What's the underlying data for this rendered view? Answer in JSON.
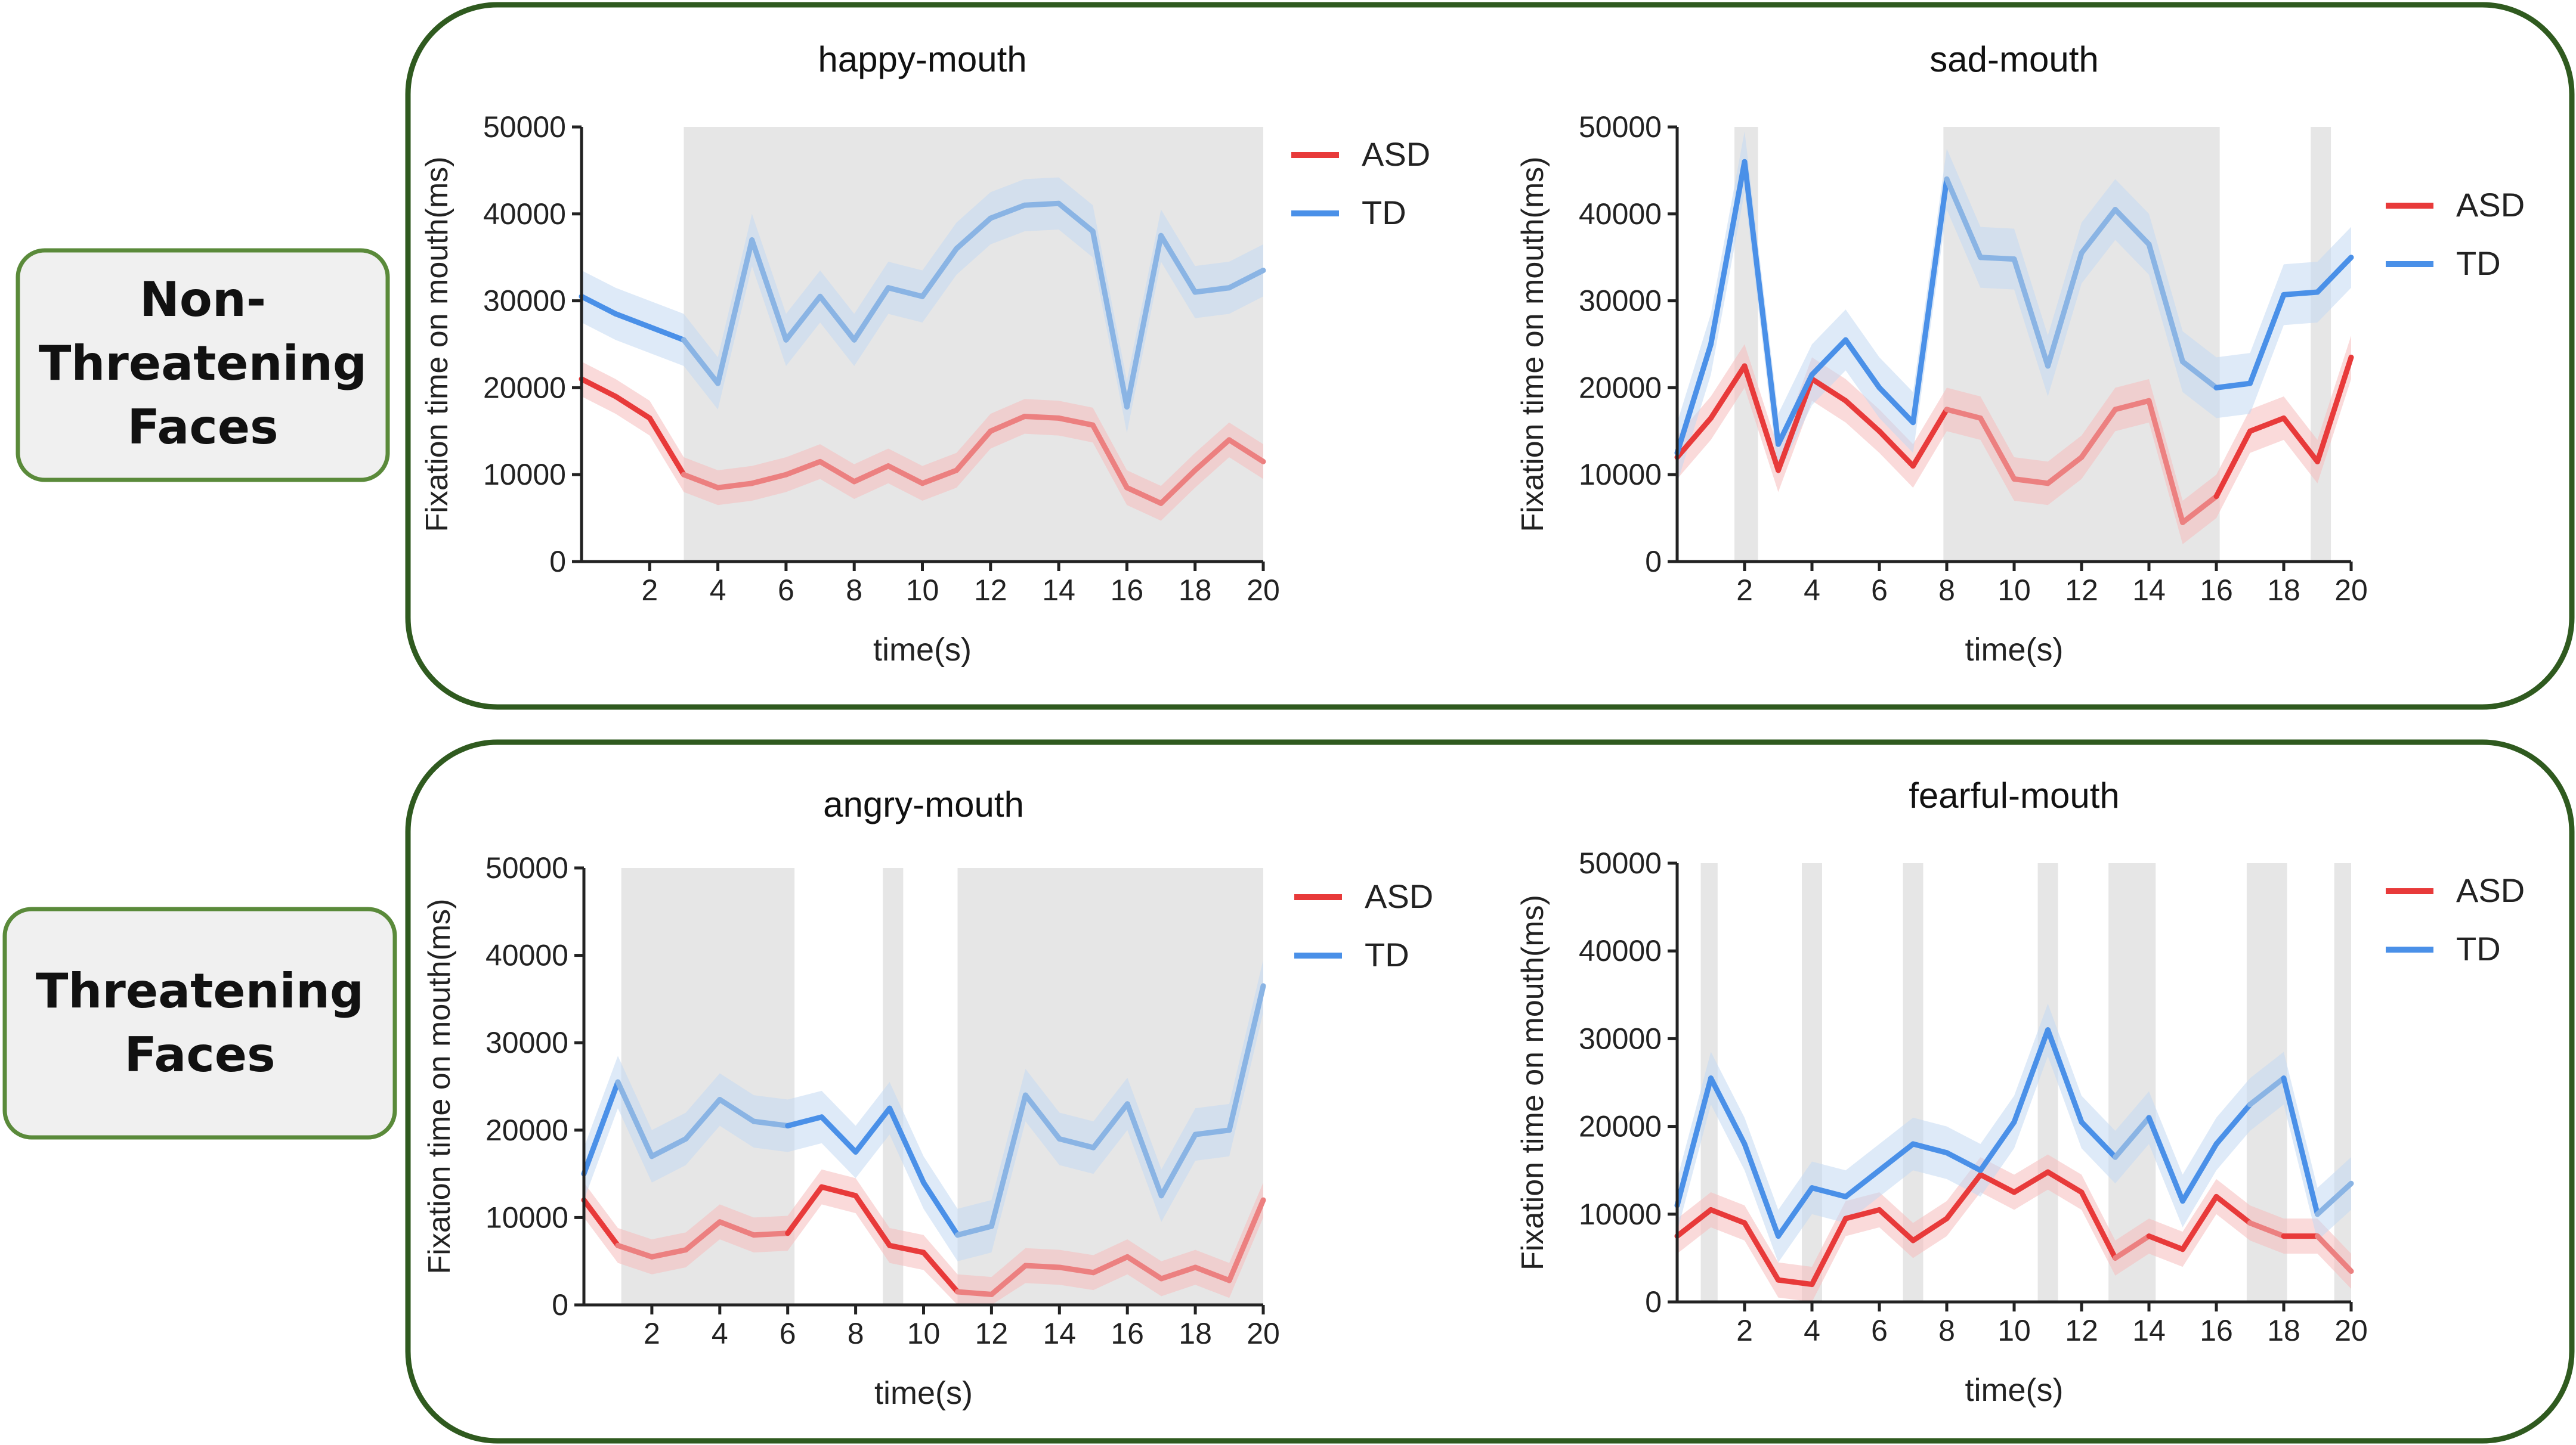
{
  "colors": {
    "panel_border": "#2f5a1f",
    "label_border": "#5a8a3a",
    "label_bg": "#f0f0f0",
    "asd": "#e83a3a",
    "asd_faded": "#ec8080",
    "asd_band": "#f6bcbc",
    "td": "#4a90e8",
    "td_faded": "#8ab4e4",
    "td_band": "#c3d9f2",
    "shade": "#e6e6e6",
    "axis": "#222222"
  },
  "groups": [
    {
      "label_lines": [
        "Non-",
        "Threatening",
        "Faces"
      ]
    },
    {
      "label_lines": [
        "Threatening",
        "Faces"
      ]
    }
  ],
  "chart_data": [
    {
      "type": "line",
      "title": "happy-mouth",
      "xlabel": "time(s)",
      "ylabel": "Fixation time on mouth(ms)",
      "xlim": [
        0,
        20
      ],
      "ylim": [
        0,
        50000
      ],
      "xticks": [
        2,
        4,
        6,
        8,
        10,
        12,
        14,
        16,
        18,
        20
      ],
      "yticks": [
        0,
        10000,
        20000,
        30000,
        40000,
        50000
      ],
      "ytick_labels": [
        "0",
        "10000",
        "20000",
        "30000",
        "40000",
        "50000"
      ],
      "legend": [
        "ASD",
        "TD"
      ],
      "legend_position": "top-right",
      "shaded_regions": [
        [
          3,
          20
        ]
      ],
      "x": [
        0,
        1,
        2,
        3,
        4,
        5,
        6,
        7,
        8,
        9,
        10,
        11,
        12,
        13,
        14,
        15,
        16,
        17,
        18,
        19,
        20
      ],
      "series": [
        {
          "name": "ASD",
          "values": [
            21000,
            19000,
            16500,
            10000,
            8500,
            9000,
            10000,
            11500,
            9200,
            11000,
            9000,
            10500,
            15000,
            16700,
            16500,
            15700,
            8500,
            6700,
            10500,
            14000,
            11500
          ],
          "band": 2000
        },
        {
          "name": "TD",
          "values": [
            30500,
            28500,
            27000,
            25500,
            20500,
            37000,
            25500,
            30500,
            25500,
            31500,
            30500,
            36000,
            39500,
            41000,
            41200,
            38000,
            17800,
            37500,
            31000,
            31500,
            33500
          ],
          "band": 3000
        }
      ]
    },
    {
      "type": "line",
      "title": "sad-mouth",
      "xlabel": "time(s)",
      "ylabel": "Fixation time on mouth(ms)",
      "xlim": [
        0,
        20
      ],
      "ylim": [
        0,
        50000
      ],
      "xticks": [
        2,
        4,
        6,
        8,
        10,
        12,
        14,
        16,
        18,
        20
      ],
      "yticks": [
        0,
        10000,
        20000,
        30000,
        40000,
        50000
      ],
      "ytick_labels": [
        "0",
        "10000",
        "20000",
        "30000",
        "40000",
        "50000"
      ],
      "legend": [
        "ASD",
        "TD"
      ],
      "legend_position": "top-right",
      "shaded_regions": [
        [
          1.7,
          2.4
        ],
        [
          7.9,
          16.1
        ],
        [
          18.8,
          19.4
        ]
      ],
      "x": [
        0,
        1,
        2,
        3,
        4,
        5,
        6,
        7,
        8,
        9,
        10,
        11,
        12,
        13,
        14,
        15,
        16,
        17,
        18,
        19,
        20
      ],
      "series": [
        {
          "name": "ASD",
          "values": [
            12000,
            16500,
            22500,
            10500,
            21000,
            18500,
            15000,
            11000,
            17500,
            16500,
            9500,
            9000,
            12000,
            17500,
            18500,
            4500,
            7500,
            15000,
            16500,
            11500,
            23500
          ],
          "band": 2500
        },
        {
          "name": "TD",
          "values": [
            12500,
            25000,
            46000,
            13500,
            21500,
            25500,
            20000,
            16000,
            44000,
            35000,
            34800,
            22500,
            35500,
            40500,
            36500,
            23000,
            20000,
            20500,
            30700,
            31000,
            35000
          ],
          "band": 3500
        }
      ]
    },
    {
      "type": "line",
      "title": "angry-mouth",
      "xlabel": "time(s)",
      "ylabel": "Fixation time on mouth(ms)",
      "xlim": [
        0,
        20
      ],
      "ylim": [
        0,
        50000
      ],
      "xticks": [
        2,
        4,
        6,
        8,
        10,
        12,
        14,
        16,
        18,
        20
      ],
      "yticks": [
        0,
        10000,
        20000,
        30000,
        40000,
        50000
      ],
      "ytick_labels": [
        "0",
        "10000",
        "20000",
        "30000",
        "40000",
        "50000"
      ],
      "legend": [
        "ASD",
        "TD"
      ],
      "legend_position": "top-right",
      "shaded_regions": [
        [
          1.1,
          6.2
        ],
        [
          8.8,
          9.4
        ],
        [
          11.0,
          20
        ]
      ],
      "x": [
        0,
        1,
        2,
        3,
        4,
        5,
        6,
        7,
        8,
        9,
        10,
        11,
        12,
        13,
        14,
        15,
        16,
        17,
        18,
        19,
        20
      ],
      "series": [
        {
          "name": "ASD",
          "values": [
            12000,
            6800,
            5500,
            6300,
            9500,
            8000,
            8200,
            13500,
            12500,
            6800,
            6000,
            1500,
            1200,
            4500,
            4300,
            3700,
            5500,
            3000,
            4300,
            2800,
            12000
          ],
          "band": 2000
        },
        {
          "name": "TD",
          "values": [
            15000,
            25500,
            17000,
            19000,
            23500,
            21000,
            20500,
            21500,
            17500,
            22500,
            14000,
            8000,
            9000,
            24000,
            19000,
            18000,
            23000,
            12500,
            19500,
            20000,
            36500
          ],
          "band": 3000
        }
      ]
    },
    {
      "type": "line",
      "title": "fearful-mouth",
      "xlabel": "time(s)",
      "ylabel": "Fixation time on mouth(ms)",
      "xlim": [
        0,
        20
      ],
      "ylim": [
        0,
        50000
      ],
      "xticks": [
        2,
        4,
        6,
        8,
        10,
        12,
        14,
        16,
        18,
        20
      ],
      "yticks": [
        0,
        10000,
        20000,
        30000,
        40000,
        50000
      ],
      "ytick_labels": [
        "0",
        "10000",
        "20000",
        "30000",
        "40000",
        "50000"
      ],
      "legend": [
        "ASD",
        "TD"
      ],
      "legend_position": "top-right",
      "shaded_regions": [
        [
          0.7,
          1.2
        ],
        [
          3.7,
          4.3
        ],
        [
          6.7,
          7.3
        ],
        [
          10.7,
          11.3
        ],
        [
          12.8,
          14.2
        ],
        [
          16.9,
          18.1
        ],
        [
          19.5,
          20
        ]
      ],
      "x": [
        0,
        1,
        2,
        3,
        4,
        5,
        6,
        7,
        8,
        9,
        10,
        11,
        12,
        13,
        14,
        15,
        16,
        17,
        18,
        19,
        20
      ],
      "series": [
        {
          "name": "ASD",
          "values": [
            7500,
            10500,
            9000,
            2500,
            2000,
            9500,
            10500,
            7000,
            9500,
            14500,
            12500,
            14800,
            12500,
            5000,
            7500,
            6000,
            12000,
            9000,
            7500,
            7500,
            3500
          ],
          "band": 2000
        },
        {
          "name": "TD",
          "values": [
            11000,
            25500,
            18000,
            7500,
            13000,
            12000,
            15000,
            18000,
            17000,
            15000,
            20500,
            31000,
            20500,
            16500,
            21000,
            11500,
            18000,
            22500,
            25500,
            10000,
            13500
          ],
          "band": 3000
        }
      ]
    }
  ]
}
